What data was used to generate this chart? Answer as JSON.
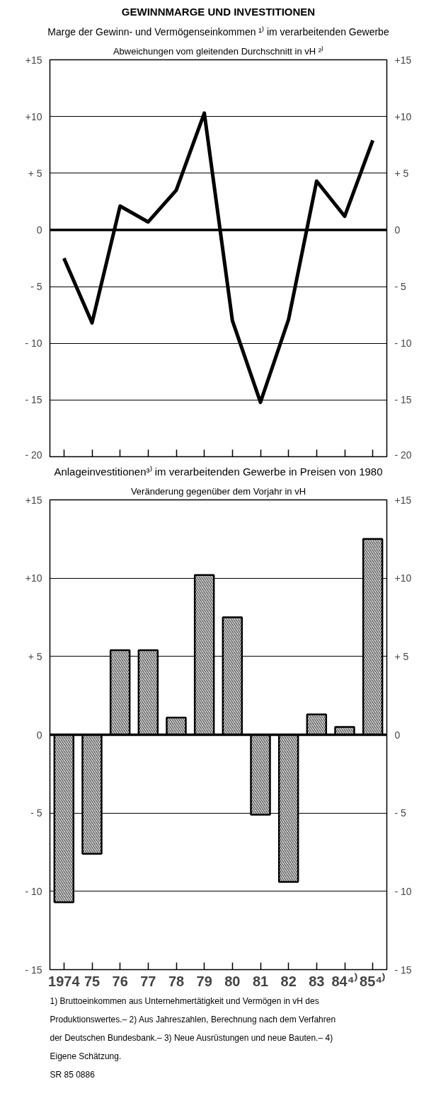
{
  "chart_data": [
    {
      "type": "line",
      "title": "GEWINNMARGE UND INVESTITIONEN",
      "subtitle": "Marge der Gewinn- und Vermögenseinkommen ¹⁾ im verarbeitenden Gewerbe",
      "ylabel": "Abweichungen vom gleitenden Durchschnitt in vH ²⁾",
      "categories": [
        null,
        null,
        null,
        null,
        null,
        null,
        null,
        null,
        null,
        null,
        null,
        null
      ],
      "series": [
        {
          "color": "#000000",
          "values": [
            -2.5,
            -8.2,
            2.1,
            0.7,
            3.5,
            10.3,
            -8.0,
            -15.2,
            -7.9,
            4.3,
            1.2,
            7.9
          ]
        }
      ],
      "ylim": [
        -20,
        15
      ],
      "yticks": [
        {
          "value": 15,
          "label": "+15"
        },
        {
          "value": 10,
          "label": "+10"
        },
        {
          "value": 5,
          "label": "+ 5"
        },
        0,
        {
          "value": -5,
          "label": "- 5"
        },
        {
          "value": -10,
          "label": "- 10"
        },
        {
          "value": -15,
          "label": "- 15"
        },
        {
          "value": -20,
          "label": "- 20"
        }
      ],
      "y2lim": [
        -20,
        15
      ],
      "y2ticks": [
        {
          "value": 15,
          "label": "+15"
        },
        {
          "value": 10,
          "label": "+10"
        },
        {
          "value": 5,
          "label": "+ 5"
        },
        0,
        {
          "value": -5,
          "label": "- 5"
        },
        {
          "value": -10,
          "label": "- 10"
        },
        {
          "value": -15,
          "label": "- 15"
        },
        {
          "value": -20,
          "label": "- 20"
        }
      ],
      "ref_lines": [
        {
          "axis": "y",
          "value": 0,
          "color": "#000000"
        }
      ],
      "grid": "y",
      "tick_labels": "y",
      "marker": "none",
      "line_style": "solid"
    },
    {
      "type": "bar",
      "title": "Anlageinvestitionen³⁾ im verarbeitenden Gewerbe in Preisen von 1980",
      "ylabel": "Veränderung gegenüber dem Vorjahr in vH",
      "categories": [
        "1974",
        "75",
        "76",
        "77",
        "78",
        "79",
        "80",
        "81",
        "82",
        "83",
        "84⁴⁾",
        "85⁴⁾"
      ],
      "series": [
        {
          "color": "#000000",
          "values": [
            -10.7,
            -7.6,
            5.4,
            5.4,
            1.1,
            10.2,
            7.5,
            -5.1,
            -9.4,
            1.3,
            0.5,
            12.5
          ]
        }
      ],
      "ylim": [
        -15,
        15
      ],
      "yticks": [
        {
          "value": 15,
          "label": "+15"
        },
        {
          "value": 10,
          "label": "+10"
        },
        {
          "value": 5,
          "label": "+ 5"
        },
        0,
        {
          "value": -5,
          "label": "- 5"
        },
        {
          "value": -10,
          "label": "- 10"
        },
        {
          "value": -15,
          "label": "- 15"
        }
      ],
      "y2lim": [
        -15,
        15
      ],
      "y2ticks": [
        {
          "value": 15,
          "label": "+15"
        },
        {
          "value": 10,
          "label": "+10"
        },
        {
          "value": 5,
          "label": "+ 5"
        },
        0,
        {
          "value": -5,
          "label": "- 5"
        },
        {
          "value": -10,
          "label": "- 10"
        },
        {
          "value": -15,
          "label": "- 15"
        }
      ],
      "ref_lines": [
        {
          "axis": "y",
          "value": 0,
          "color": "#000000"
        }
      ],
      "grid": "y",
      "annotations": [
        "1) Bruttoeinkommen aus Unternehmertätigkeit und Vermögen in vH des Produktionswertes.– 2) Aus Jahreszahlen, Berechnung nach dem Verfahren der Deutschen Bundesbank.– 3) Neue Ausrüstungen und neue Bauten.– 4) Eigene Schätzung.",
        "SR 85 0886"
      ]
    }
  ]
}
